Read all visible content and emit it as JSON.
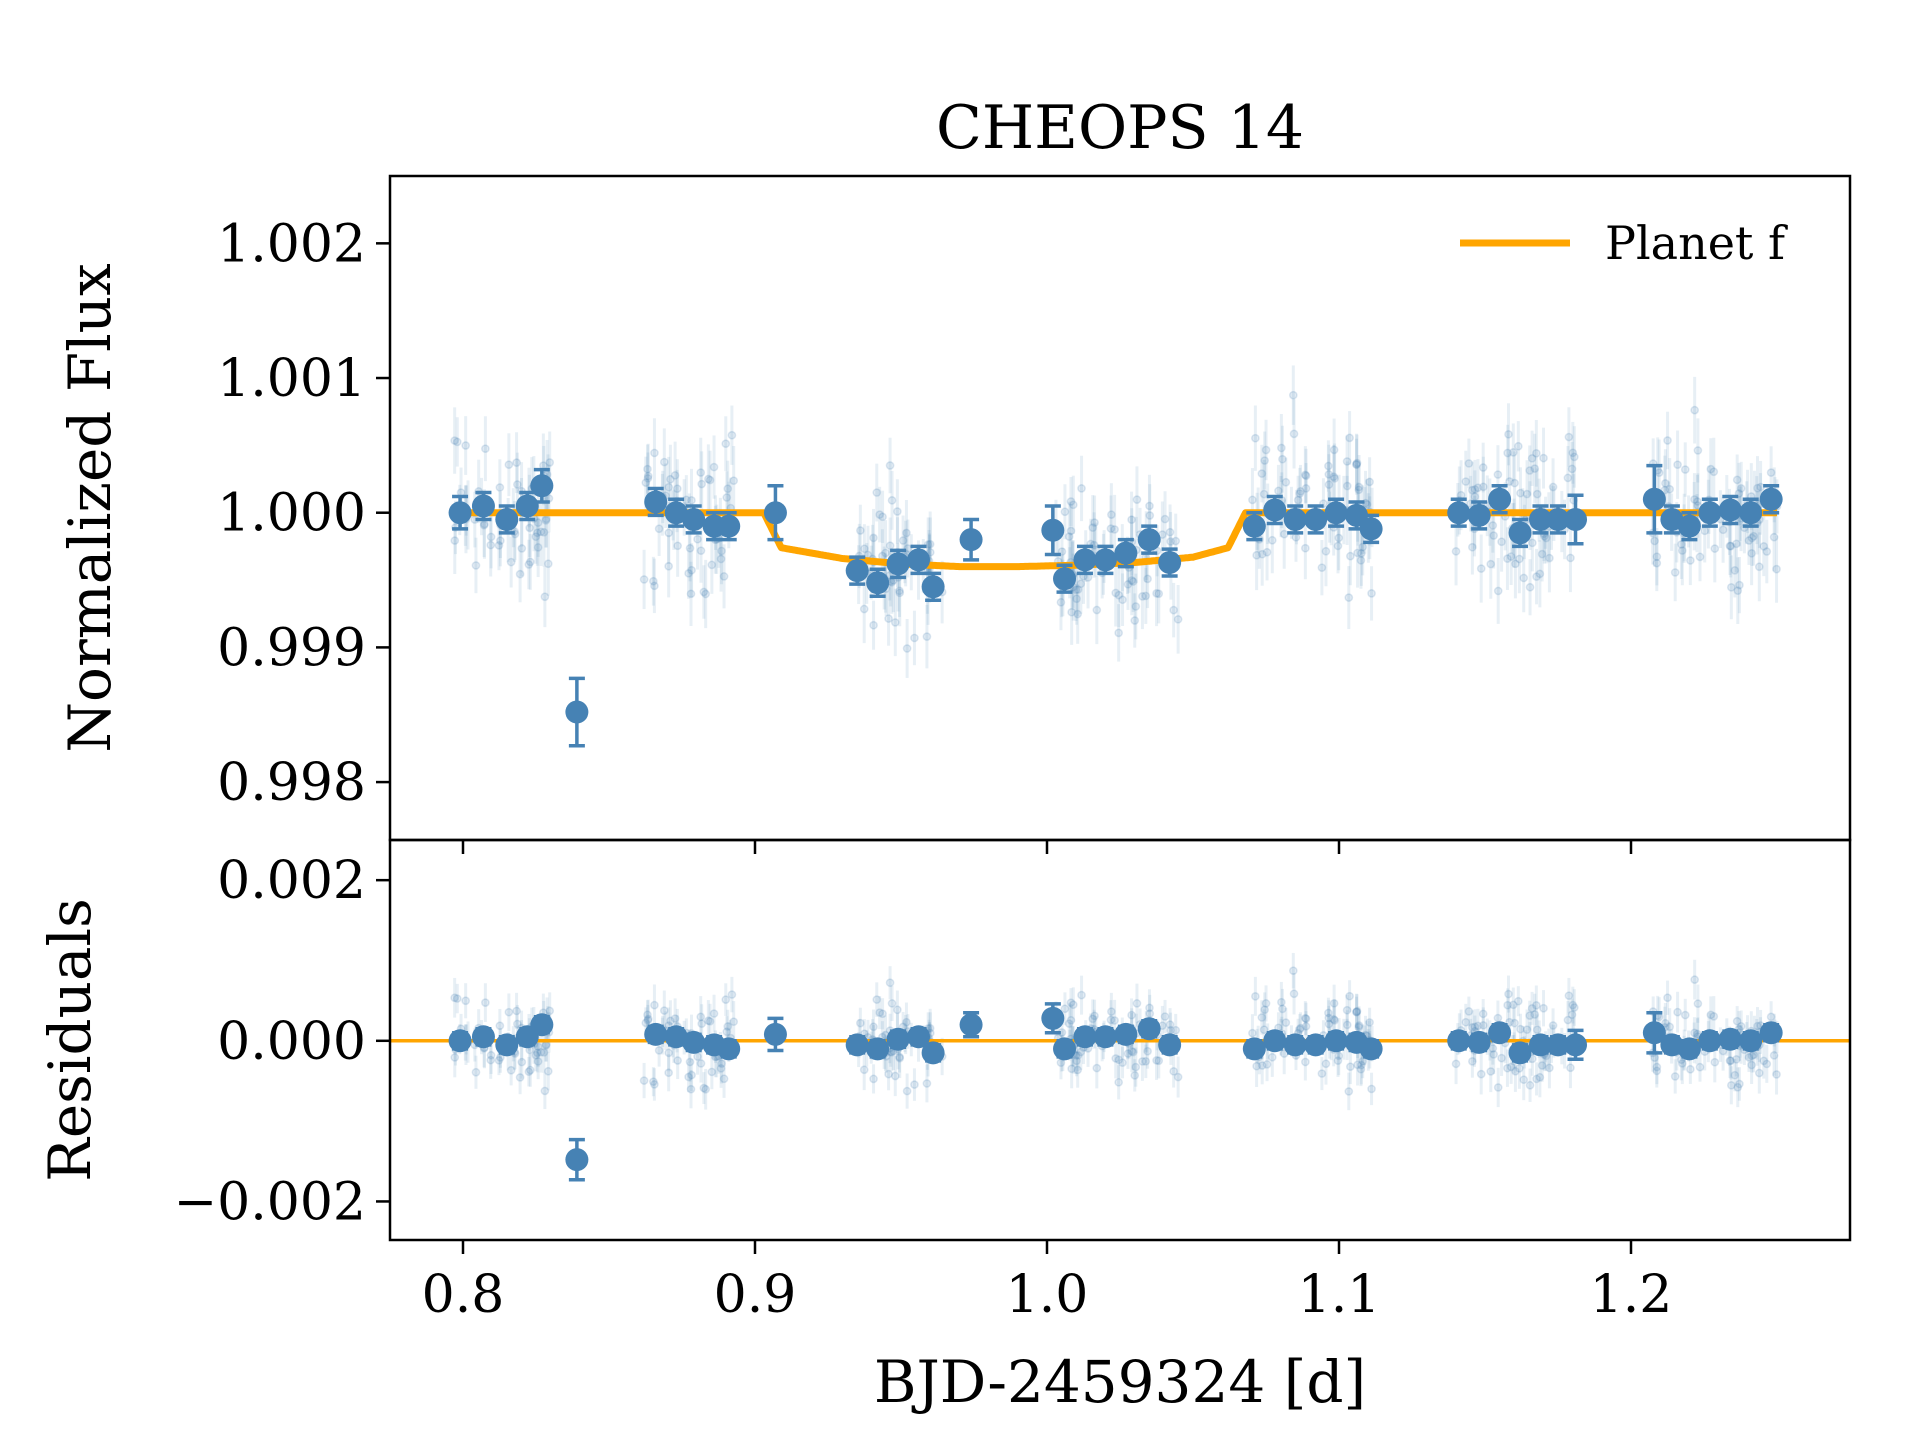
{
  "chart_data": {
    "type": "scatter",
    "title": "CHEOPS 14",
    "xlabel": "BJD-2459324 [d]",
    "xlim": [
      0.775,
      1.275
    ],
    "xticks": [
      0.8,
      0.9,
      1.0,
      1.1,
      1.2
    ],
    "xtick_labels": [
      "0.8",
      "0.9",
      "1.0",
      "1.1",
      "1.2"
    ],
    "colors": {
      "data": "#4682b4",
      "model": "#ffa500"
    },
    "panels": [
      {
        "name": "flux",
        "ylabel": "Normalized Flux",
        "ylim": [
          0.99757,
          1.0025
        ],
        "yticks": [
          0.998,
          0.999,
          1.0,
          1.001,
          1.002
        ],
        "ytick_labels": [
          "0.998",
          "0.999",
          "1.000",
          "1.001",
          "1.002"
        ],
        "legend": {
          "label": "Planet f",
          "location": "top-right"
        },
        "model": {
          "name": "Planet f",
          "transit_start": 0.903,
          "transit_end": 1.068,
          "ingress_duration": 0.006,
          "baseline": 1.0,
          "depth": 0.0004,
          "x": [
            0.797,
            0.903,
            0.909,
            0.93,
            0.95,
            0.97,
            0.99,
            1.01,
            1.03,
            1.05,
            1.062,
            1.068,
            1.25
          ],
          "y": [
            1.0,
            1.0,
            0.99974,
            0.99966,
            0.99962,
            0.9996,
            0.9996,
            0.99961,
            0.99963,
            0.99967,
            0.99974,
            1.0,
            1.0
          ]
        },
        "binned": {
          "x": [
            0.799,
            0.807,
            0.815,
            0.822,
            0.827,
            0.839,
            0.866,
            0.873,
            0.879,
            0.886,
            0.891,
            0.907,
            0.935,
            0.942,
            0.949,
            0.956,
            0.961,
            0.974,
            1.002,
            1.006,
            1.013,
            1.02,
            1.027,
            1.035,
            1.042,
            1.071,
            1.078,
            1.085,
            1.092,
            1.099,
            1.106,
            1.111,
            1.141,
            1.148,
            1.155,
            1.162,
            1.169,
            1.175,
            1.181,
            1.208,
            1.214,
            1.22,
            1.227,
            1.234,
            1.241,
            1.248
          ],
          "y": [
            1.0,
            1.00005,
            0.99995,
            1.00005,
            1.0002,
            0.99852,
            1.00008,
            1.0,
            0.99995,
            0.9999,
            0.9999,
            1.0,
            0.99957,
            0.99948,
            0.99962,
            0.99965,
            0.99945,
            0.9998,
            0.99987,
            0.99951,
            0.99965,
            0.99965,
            0.9997,
            0.9998,
            0.99963,
            0.9999,
            1.00002,
            0.99995,
            0.99995,
            1.0,
            0.99998,
            0.99988,
            1.0,
            0.99998,
            1.0001,
            0.99985,
            0.99995,
            0.99995,
            0.99995,
            1.0001,
            0.99995,
            0.9999,
            1.0,
            1.00002,
            1.0,
            1.0001
          ],
          "yerr": [
            0.00012,
            0.0001,
            0.0001,
            0.0001,
            0.00012,
            0.00025,
            0.0001,
            0.0001,
            0.0001,
            0.0001,
            0.0001,
            0.0002,
            0.0001,
            0.0001,
            0.0001,
            0.0001,
            0.0001,
            0.00015,
            0.00018,
            0.0001,
            0.0001,
            0.0001,
            0.0001,
            0.0001,
            0.0001,
            0.0001,
            0.0001,
            0.0001,
            0.0001,
            0.0001,
            0.0001,
            0.0001,
            0.0001,
            0.0001,
            0.0001,
            0.0001,
            0.0001,
            0.0001,
            0.00018,
            0.00025,
            0.0001,
            0.0001,
            0.0001,
            0.0001,
            0.0001,
            0.0001
          ]
        },
        "raw_scatter_sigma": 0.00028
      },
      {
        "name": "residuals",
        "ylabel": "Residuals",
        "ylim": [
          -0.00248,
          0.0025
        ],
        "yticks": [
          -0.002,
          0.0,
          0.002
        ],
        "ytick_labels": [
          "−0.002",
          "0.000",
          "0.002"
        ],
        "zero_line": 0.0,
        "binned": {
          "x": [
            0.799,
            0.807,
            0.815,
            0.822,
            0.827,
            0.839,
            0.866,
            0.873,
            0.879,
            0.886,
            0.891,
            0.907,
            0.935,
            0.942,
            0.949,
            0.956,
            0.961,
            0.974,
            1.002,
            1.006,
            1.013,
            1.02,
            1.027,
            1.035,
            1.042,
            1.071,
            1.078,
            1.085,
            1.092,
            1.099,
            1.106,
            1.111,
            1.141,
            1.148,
            1.155,
            1.162,
            1.169,
            1.175,
            1.181,
            1.208,
            1.214,
            1.22,
            1.227,
            1.234,
            1.241,
            1.248
          ],
          "y": [
            0.0,
            5e-05,
            -5e-05,
            5e-05,
            0.0002,
            -0.00148,
            8e-05,
            5e-05,
            -2e-05,
            -5e-05,
            -0.0001,
            8e-05,
            -5e-05,
            -0.0001,
            2e-05,
            5e-05,
            -0.00015,
            0.0002,
            0.00028,
            -0.0001,
            5e-05,
            5e-05,
            8e-05,
            0.00015,
            -5e-05,
            -0.0001,
            0.0,
            -5e-05,
            -5e-05,
            0.0,
            -2e-05,
            -0.0001,
            0.0,
            -2e-05,
            0.0001,
            -0.00015,
            -5e-05,
            -5e-05,
            -5e-05,
            0.0001,
            -5e-05,
            -0.0001,
            0.0,
            2e-05,
            0.0,
            0.0001
          ],
          "yerr": [
            0.0001,
            0.0001,
            0.0001,
            0.0001,
            0.0001,
            0.00025,
            0.0001,
            0.0001,
            0.0001,
            0.0001,
            0.0001,
            0.0002,
            0.0001,
            0.0001,
            0.0001,
            0.0001,
            0.0001,
            0.00015,
            0.00018,
            0.0001,
            0.0001,
            0.0001,
            0.0001,
            0.0001,
            0.0001,
            0.0001,
            0.0001,
            0.0001,
            0.0001,
            0.0001,
            0.0001,
            0.0001,
            0.0001,
            0.0001,
            0.0001,
            0.0001,
            0.0001,
            0.0001,
            0.00018,
            0.00025,
            0.0001,
            0.0001,
            0.0001,
            0.0001,
            0.0001,
            0.0001
          ]
        }
      }
    ],
    "observation_windows": [
      [
        0.797,
        0.83
      ],
      [
        0.862,
        0.893
      ],
      [
        0.935,
        0.965
      ],
      [
        1.003,
        1.045
      ],
      [
        1.07,
        1.112
      ],
      [
        1.14,
        1.182
      ],
      [
        1.207,
        1.25
      ]
    ]
  }
}
